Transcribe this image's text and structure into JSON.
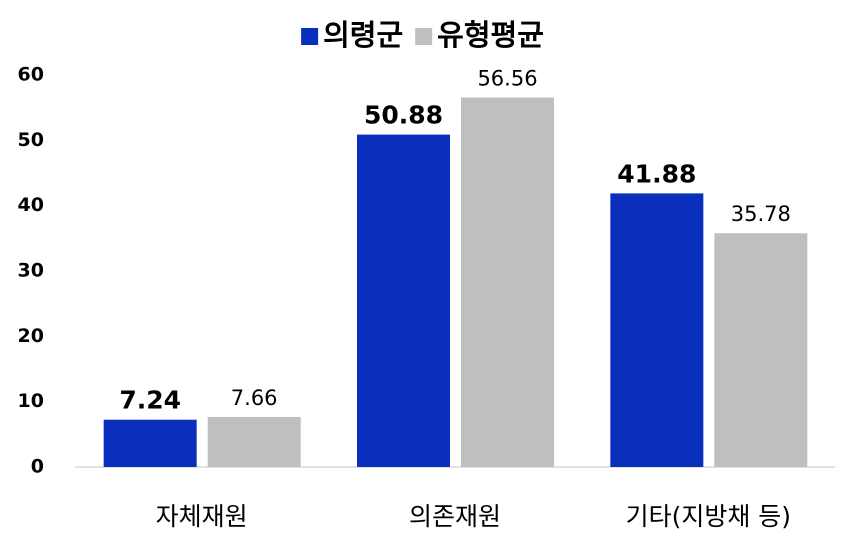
{
  "chart_data": {
    "type": "bar",
    "categories": [
      "자체재원",
      "의존재원",
      "기타(지방채 등)"
    ],
    "series": [
      {
        "name": "의령군",
        "color": "#0a2fbd",
        "values": [
          7.24,
          50.88,
          41.88
        ]
      },
      {
        "name": "유형평균",
        "color": "#bfbfbf",
        "values": [
          7.66,
          56.56,
          35.78
        ]
      }
    ],
    "ylim": [
      0,
      60
    ],
    "yticks": [
      0,
      10,
      20,
      30,
      40,
      50,
      60
    ],
    "grid": false,
    "legend": "top"
  }
}
